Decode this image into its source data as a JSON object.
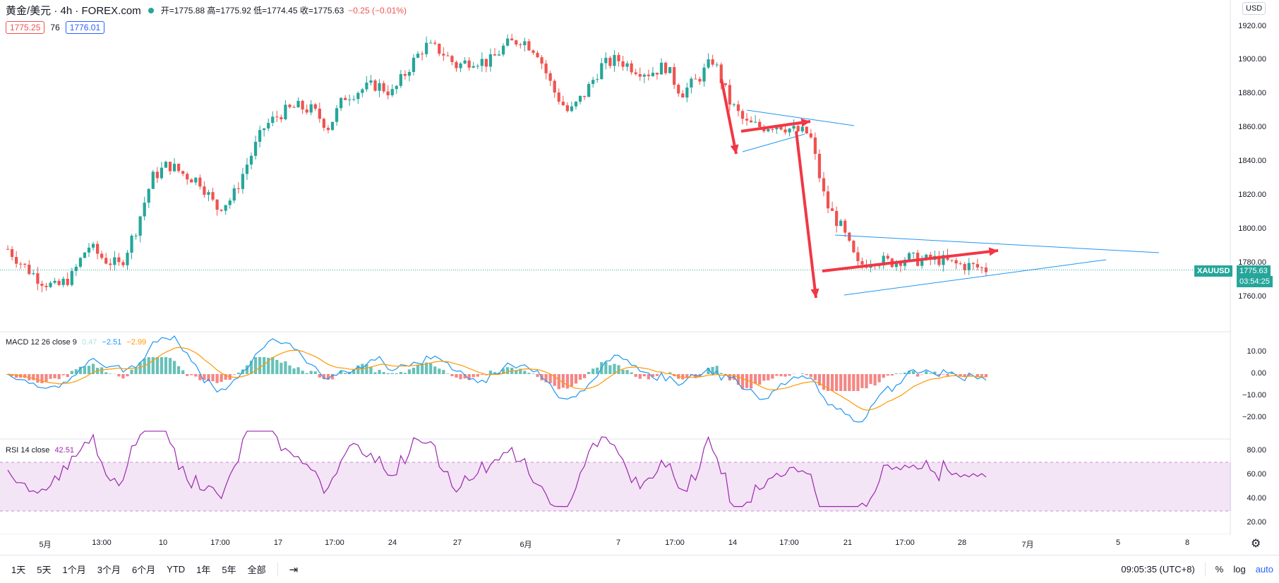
{
  "header": {
    "symbol": "黄金/美元 · 4h · FOREX.com",
    "ohlc": "开=1775.88 高=1775.92 低=1774.45 收=1775.63",
    "change": "−0.25 (−0.01%)",
    "sell": "1775.25",
    "spread": "76",
    "buy": "1776.01",
    "currency": "USD"
  },
  "price_axis": [
    "1920.00",
    "1900.00",
    "1880.00",
    "1860.00",
    "1840.00",
    "1820.00",
    "1800.00",
    "1780.00",
    "1760.00"
  ],
  "last_price": {
    "symbol": "XAUUSD",
    "value": "1775.63",
    "countdown": "03:54:25"
  },
  "macd": {
    "label": "MACD 12 26 close 9",
    "hist": "0.47",
    "macd": "−2.51",
    "signal": "−2.99",
    "axis": [
      "10.00",
      "0.00",
      "−10.00",
      "−20.00"
    ]
  },
  "rsi": {
    "label": "RSI 14 close",
    "value": "42.51",
    "axis": [
      "80.00",
      "60.00",
      "40.00",
      "20.00"
    ]
  },
  "time_axis": [
    "5月",
    "13:00",
    "10",
    "17:00",
    "17",
    "17:00",
    "24",
    "27",
    "6月",
    "7",
    "17:00",
    "14",
    "17:00",
    "21",
    "17:00",
    "28",
    "7月",
    "5",
    "8"
  ],
  "ranges": [
    "1天",
    "5天",
    "1个月",
    "3个月",
    "6个月",
    "YTD",
    "1年",
    "5年",
    "全部"
  ],
  "footer": {
    "time": "09:05:35 (UTC+8)",
    "percent": "%",
    "log": "log",
    "auto": "auto"
  },
  "colors": {
    "up": "#26a69a",
    "down": "#ef5350",
    "macd": "#2196f3",
    "signal": "#ff9800",
    "rsi": "#9c27b0",
    "arrow": "#f23645"
  },
  "chart_data": {
    "type": "candlestick",
    "series_close": [
      1788,
      1778,
      1770,
      1765,
      1772,
      1790,
      1782,
      1778,
      1800,
      1830,
      1838,
      1832,
      1828,
      1812,
      1818,
      1840,
      1860,
      1868,
      1872,
      1870,
      1860,
      1878,
      1882,
      1885,
      1880,
      1895,
      1908,
      1905,
      1896,
      1900,
      1898,
      1908,
      1912,
      1905,
      1882,
      1868,
      1880,
      1896,
      1900,
      1895,
      1892,
      1896,
      1880,
      1888,
      1900,
      1875,
      1862,
      1860,
      1862,
      1858,
      1856,
      1815,
      1800,
      1778,
      1782,
      1780,
      1783,
      1781,
      1782,
      1779,
      1778,
      1776
    ],
    "ylim": [
      1755,
      1925
    ]
  }
}
